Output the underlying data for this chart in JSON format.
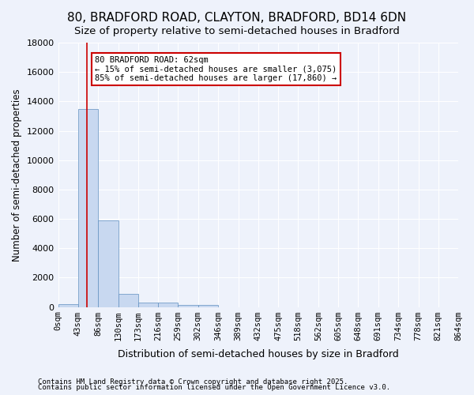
{
  "title": "80, BRADFORD ROAD, CLAYTON, BRADFORD, BD14 6DN",
  "subtitle": "Size of property relative to semi-detached houses in Bradford",
  "xlabel": "Distribution of semi-detached houses by size in Bradford",
  "ylabel": "Number of semi-detached properties",
  "bin_edges": [
    0,
    43,
    86,
    130,
    173,
    216,
    259,
    302,
    346,
    389,
    432,
    475,
    518,
    562,
    605,
    648,
    691,
    734,
    778,
    821,
    864
  ],
  "bar_heights": [
    200,
    13500,
    5900,
    900,
    300,
    300,
    150,
    150,
    0,
    0,
    0,
    0,
    0,
    0,
    0,
    0,
    0,
    0,
    0,
    0
  ],
  "bar_color": "#c8d8f0",
  "bar_edge_color": "#6090c0",
  "property_size": 62,
  "property_line_color": "#cc0000",
  "ylim": [
    0,
    18000
  ],
  "yticks": [
    0,
    2000,
    4000,
    6000,
    8000,
    10000,
    12000,
    14000,
    16000,
    18000
  ],
  "annotation_text": "80 BRADFORD ROAD: 62sqm\n← 15% of semi-detached houses are smaller (3,075)\n85% of semi-detached houses are larger (17,860) →",
  "annotation_box_color": "#ffffff",
  "annotation_box_edge": "#cc0000",
  "footer_line1": "Contains HM Land Registry data © Crown copyright and database right 2025.",
  "footer_line2": "Contains public sector information licensed under the Open Government Licence v3.0.",
  "background_color": "#eef2fb",
  "grid_color": "#ffffff",
  "title_fontsize": 11,
  "subtitle_fontsize": 9.5,
  "tick_label_fontsize": 7.5
}
